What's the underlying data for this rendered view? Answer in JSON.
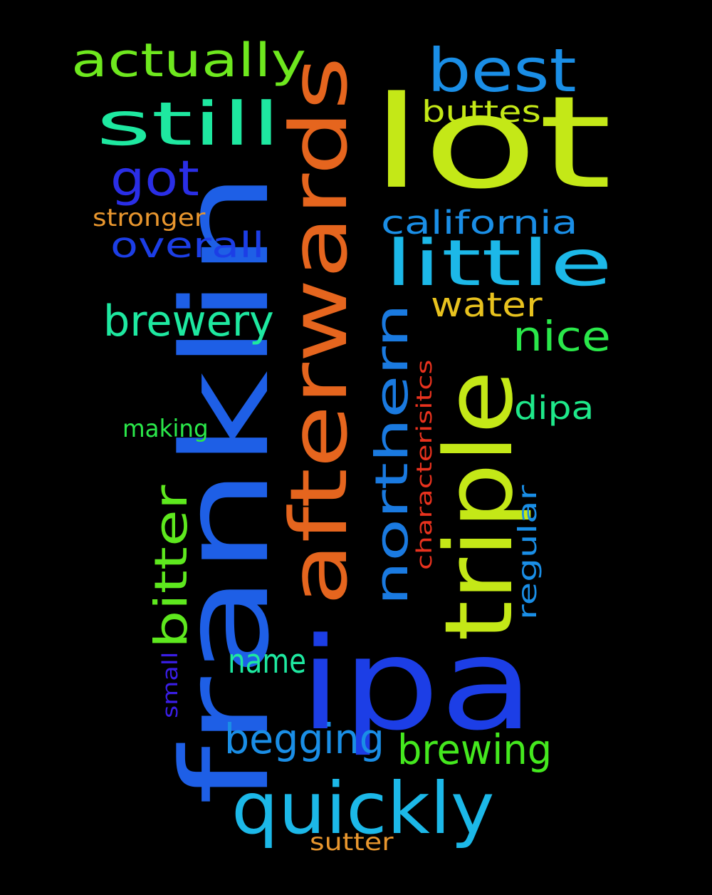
{
  "background": "#000000",
  "words": [
    {
      "text": "lot",
      "color": "#c4e817"
    },
    {
      "text": "franklin",
      "color": "#1e5fe6"
    },
    {
      "text": "ipa",
      "color": "#1c3ee6"
    },
    {
      "text": "afterwards",
      "color": "#e5651e"
    },
    {
      "text": "triple",
      "color": "#c4e817"
    },
    {
      "text": "northern",
      "color": "#1a7ae0"
    },
    {
      "text": "quickly",
      "color": "#1cb8e8"
    },
    {
      "text": "little",
      "color": "#1cb8e8"
    },
    {
      "text": "best",
      "color": "#1a8ee6"
    },
    {
      "text": "still",
      "color": "#1ee8a0"
    },
    {
      "text": "actually",
      "color": "#6ee81e"
    },
    {
      "text": "got",
      "color": "#2a2ee6"
    },
    {
      "text": "brewery",
      "color": "#1ee8a0"
    },
    {
      "text": "bitter",
      "color": "#5ee81e"
    },
    {
      "text": "brewing",
      "color": "#44e81e"
    },
    {
      "text": "begging",
      "color": "#1a8ee6"
    },
    {
      "text": "california",
      "color": "#1a8ee6"
    },
    {
      "text": "nice",
      "color": "#2ae84a"
    },
    {
      "text": "overall",
      "color": "#1c3ee6"
    },
    {
      "text": "water",
      "color": "#e8c21e"
    },
    {
      "text": "dipa",
      "color": "#1ee88a"
    },
    {
      "text": "name",
      "color": "#1ee8a0"
    },
    {
      "text": "buttes",
      "color": "#c4e817"
    },
    {
      "text": "regular",
      "color": "#1a8ee6"
    },
    {
      "text": "characterisitcs",
      "color": "#e8321e"
    },
    {
      "text": "stronger",
      "color": "#e8962e"
    },
    {
      "text": "making",
      "color": "#2ae84a"
    },
    {
      "text": "small",
      "color": "#3a1ee6"
    },
    {
      "text": "sutter",
      "color": "#e8962e"
    }
  ]
}
